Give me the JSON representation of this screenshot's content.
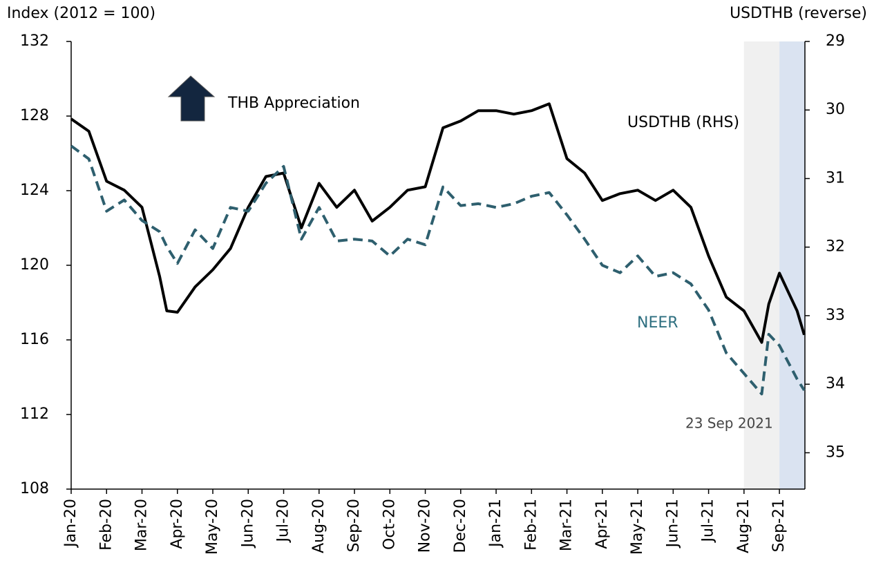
{
  "chart_data": {
    "type": "line",
    "y_axis_label": "Index (2012 = 100)",
    "y2_axis_label": "USDTHB (reverse)",
    "annotations": {
      "appreciation": "THB Appreciation",
      "usdthb": "USDTHB (RHS)",
      "neer": "NEER",
      "date": "23 Sep 2021"
    },
    "x": [
      0,
      0.5,
      1,
      1.5,
      2,
      2.5,
      2.7,
      3,
      3.5,
      4,
      4.5,
      5,
      5.5,
      6,
      6.5,
      7,
      7.5,
      8,
      8.5,
      9,
      9.5,
      10,
      10.5,
      11,
      11.5,
      12,
      12.5,
      13,
      13.5,
      14,
      14.5,
      15,
      15.5,
      16,
      16.5,
      17,
      17.5,
      18,
      18.5,
      19,
      19.5,
      19.7,
      20,
      20.5,
      20.7
    ],
    "xlim": [
      0,
      20.72
    ],
    "xticks": [
      {
        "value": 0,
        "label": "Jan-20"
      },
      {
        "value": 1,
        "label": "Feb-20"
      },
      {
        "value": 2,
        "label": "Mar-20"
      },
      {
        "value": 3,
        "label": "Apr-20"
      },
      {
        "value": 4,
        "label": "May-20"
      },
      {
        "value": 5,
        "label": "Jun-20"
      },
      {
        "value": 6,
        "label": "Jul-20"
      },
      {
        "value": 7,
        "label": "Aug-20"
      },
      {
        "value": 8,
        "label": "Sep-20"
      },
      {
        "value": 9,
        "label": "Oct-20"
      },
      {
        "value": 10,
        "label": "Nov-20"
      },
      {
        "value": 11,
        "label": "Dec-20"
      },
      {
        "value": 12,
        "label": "Jan-21"
      },
      {
        "value": 13,
        "label": "Feb-21"
      },
      {
        "value": 14,
        "label": "Mar-21"
      },
      {
        "value": 15,
        "label": "Apr-21"
      },
      {
        "value": 16,
        "label": "May-21"
      },
      {
        "value": 17,
        "label": "Jun-21"
      },
      {
        "value": 18,
        "label": "Jul-21"
      },
      {
        "value": 19,
        "label": "Aug-21"
      },
      {
        "value": 20,
        "label": "Sep-21"
      }
    ],
    "ylim": [
      108,
      132
    ],
    "yticks": [
      108,
      112,
      116,
      120,
      124,
      128,
      132
    ],
    "y2lim": [
      35.53,
      29
    ],
    "y2ticks": [
      29,
      30,
      31,
      32,
      33,
      34,
      35
    ],
    "shaded_regions": [
      {
        "from": 19,
        "to": 20,
        "color": "#f0f0f0"
      },
      {
        "from": 20,
        "to": 20.72,
        "color": "#dae3f1"
      }
    ],
    "series": [
      {
        "name": "USDTHB (RHS)",
        "color": "#000000",
        "axis": "y2",
        "dashed": false,
        "values": [
          30.13,
          30.31,
          31.04,
          31.17,
          31.42,
          32.43,
          32.93,
          32.95,
          32.58,
          32.33,
          32.02,
          31.42,
          30.97,
          30.92,
          31.72,
          31.07,
          31.42,
          31.17,
          31.62,
          31.42,
          31.17,
          31.12,
          30.26,
          30.16,
          30.01,
          30.01,
          30.06,
          30.01,
          29.91,
          30.71,
          30.92,
          31.32,
          31.22,
          31.17,
          31.32,
          31.17,
          31.42,
          32.13,
          32.73,
          32.93,
          33.39,
          32.83,
          32.38,
          32.93,
          33.28
        ]
      },
      {
        "name": "NEER",
        "color": "#2e5f6e",
        "axis": "y",
        "dashed": true,
        "values": [
          126.4,
          125.7,
          122.9,
          123.5,
          122.4,
          121.8,
          121.0,
          120.1,
          121.9,
          120.9,
          123.1,
          122.9,
          124.4,
          125.3,
          121.4,
          123.1,
          121.3,
          121.4,
          121.3,
          120.5,
          121.4,
          121.1,
          124.2,
          123.2,
          123.3,
          123.1,
          123.3,
          123.7,
          123.9,
          122.7,
          121.4,
          120.0,
          119.6,
          120.5,
          119.4,
          119.6,
          119.0,
          117.6,
          115.3,
          114.2,
          113.1,
          116.3,
          115.7,
          113.9,
          113.3
        ]
      }
    ]
  }
}
